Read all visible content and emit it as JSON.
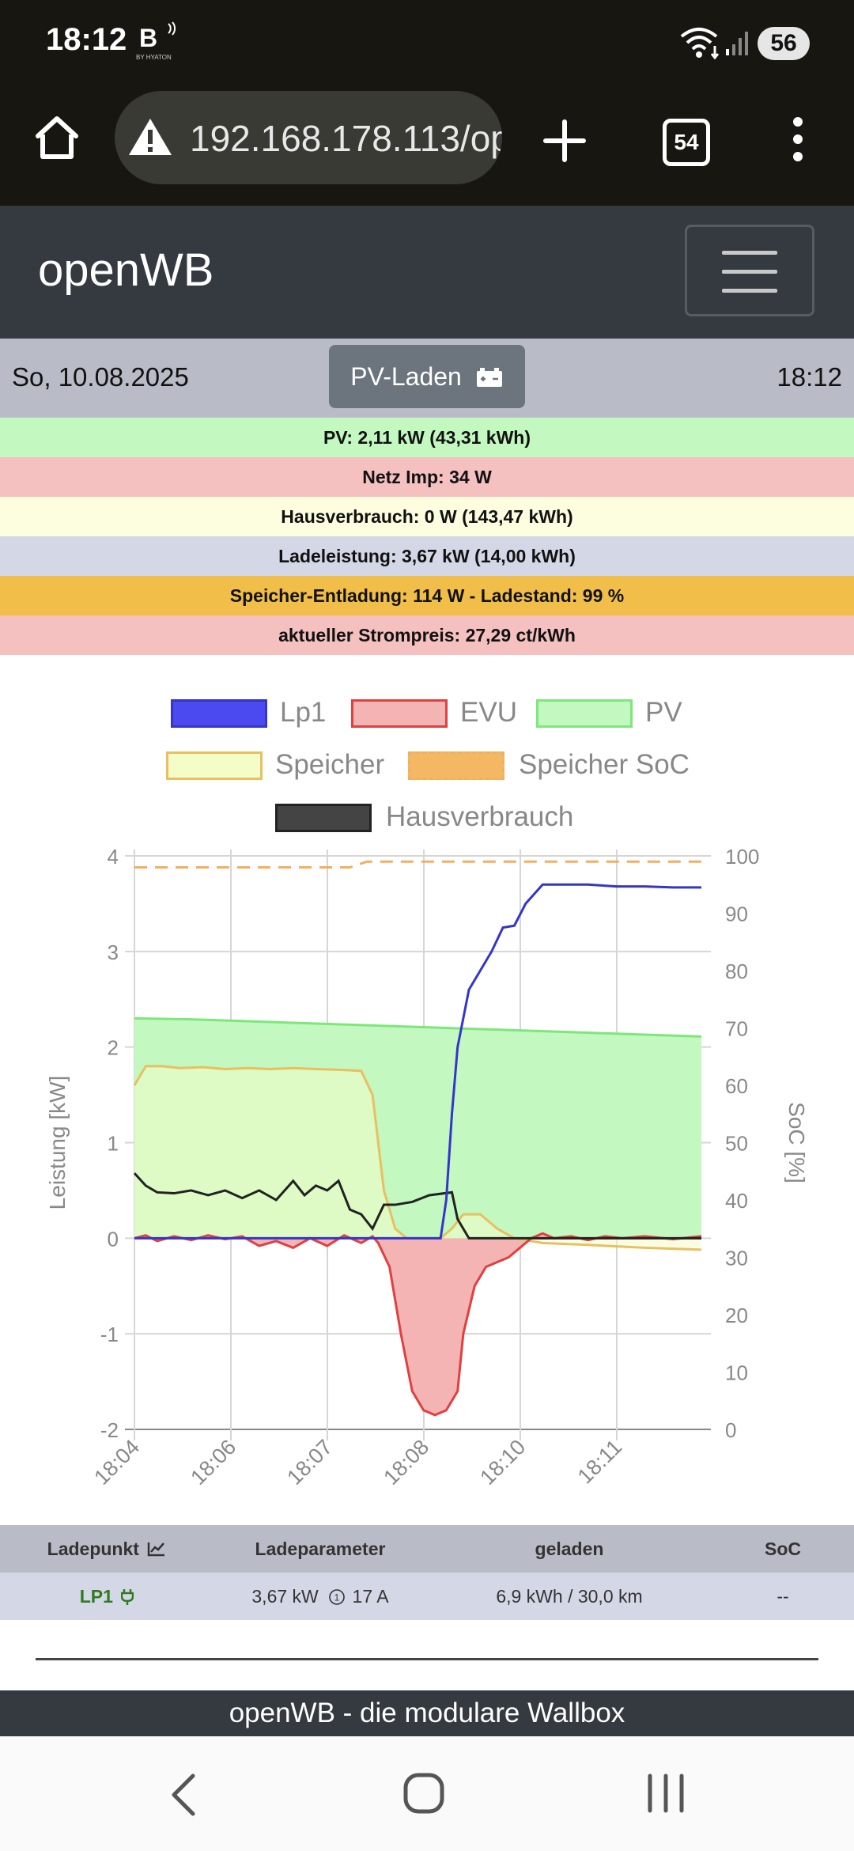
{
  "status": {
    "time": "18:12",
    "carrier": "B",
    "carrier_sub": "BY HYATON",
    "battery": "56"
  },
  "browser": {
    "url": "192.168.178.113/op",
    "tab_count": "54"
  },
  "navbar": {
    "brand": "openWB"
  },
  "daterow": {
    "date": "So, 10.08.2025",
    "mode": "PV-Laden",
    "time": "18:12"
  },
  "info": [
    {
      "text": "PV: 2,11 kW (43,31 kWh)",
      "color": "#c3f8c0"
    },
    {
      "text": "Netz Imp: 34 W",
      "color": "#f4c0c0"
    },
    {
      "text": "Hausverbrauch: 0 W (143,47 kWh)",
      "color": "#fdfde0"
    },
    {
      "text": "Ladeleistung: 3,67 kW (14,00 kWh)",
      "color": "#d4d8e6"
    },
    {
      "text": "Speicher-Entladung: 114 W  - Ladestand: 99 %",
      "color": "#f2be4a"
    },
    {
      "text": "aktueller Strompreis: 27,29 ct/kWh",
      "color": "#f4c0c0"
    }
  ],
  "chart_data": {
    "type": "line",
    "legend": [
      {
        "name": "Lp1",
        "fill": "#4a4af0",
        "stroke": "#3535c8"
      },
      {
        "name": "EVU",
        "fill": "#f4b4b4",
        "stroke": "#e04040"
      },
      {
        "name": "PV",
        "fill": "#c3f8c0",
        "stroke": "#7ce87a"
      },
      {
        "name": "Speicher",
        "fill": "#f4fcc8",
        "stroke": "#e8c060"
      },
      {
        "name": "Speicher SoC",
        "fill": "#f4b864",
        "stroke": "#f0b060"
      },
      {
        "name": "Hausverbrauch",
        "fill": "#444444",
        "stroke": "#222222"
      }
    ],
    "xlabels": [
      "18:04",
      "18:06",
      "18:07",
      "18:08",
      "18:10",
      "18:11"
    ],
    "ylabel_left": "Leistung [kW]",
    "ylabel_right": "SoC [%]",
    "ylim_left": [
      -2,
      4
    ],
    "yticks_left": [
      "4",
      "3",
      "2",
      "1",
      "0",
      "-1",
      "-2"
    ],
    "ylim_right": [
      0,
      100
    ],
    "yticks_right": [
      "100",
      "90",
      "80",
      "70",
      "60",
      "50",
      "40",
      "30",
      "20",
      "10",
      "0"
    ],
    "x_range": [
      0,
      100
    ],
    "series": {
      "PV": [
        [
          0,
          2.3
        ],
        [
          10,
          2.29
        ],
        [
          20,
          2.27
        ],
        [
          30,
          2.25
        ],
        [
          40,
          2.23
        ],
        [
          50,
          2.21
        ],
        [
          60,
          2.19
        ],
        [
          70,
          2.17
        ],
        [
          80,
          2.15
        ],
        [
          90,
          2.13
        ],
        [
          100,
          2.11
        ]
      ],
      "Speicher": [
        [
          0,
          1.6
        ],
        [
          2,
          1.8
        ],
        [
          5,
          1.8
        ],
        [
          8,
          1.78
        ],
        [
          12,
          1.79
        ],
        [
          16,
          1.77
        ],
        [
          20,
          1.78
        ],
        [
          24,
          1.77
        ],
        [
          28,
          1.78
        ],
        [
          32,
          1.77
        ],
        [
          37,
          1.76
        ],
        [
          40,
          1.75
        ],
        [
          42,
          1.5
        ],
        [
          44,
          0.5
        ],
        [
          46,
          0.1
        ],
        [
          48,
          0
        ],
        [
          54,
          0
        ],
        [
          56,
          0.1
        ],
        [
          58,
          0.25
        ],
        [
          61,
          0.25
        ],
        [
          64,
          0.1
        ],
        [
          67,
          0
        ],
        [
          72,
          -0.05
        ],
        [
          80,
          -0.07
        ],
        [
          90,
          -0.1
        ],
        [
          100,
          -0.12
        ]
      ],
      "EVU": [
        [
          0,
          0
        ],
        [
          2,
          0.03
        ],
        [
          4,
          -0.03
        ],
        [
          7,
          0.02
        ],
        [
          10,
          -0.02
        ],
        [
          13,
          0.03
        ],
        [
          16,
          -0.01
        ],
        [
          19,
          0.02
        ],
        [
          22,
          -0.08
        ],
        [
          25,
          -0.03
        ],
        [
          28,
          -0.1
        ],
        [
          31,
          0
        ],
        [
          34,
          -0.08
        ],
        [
          37,
          0.03
        ],
        [
          40,
          -0.05
        ],
        [
          42,
          0.02
        ],
        [
          43,
          -0.05
        ],
        [
          45,
          -0.3
        ],
        [
          47,
          -1.0
        ],
        [
          49,
          -1.6
        ],
        [
          51,
          -1.8
        ],
        [
          53,
          -1.85
        ],
        [
          55,
          -1.8
        ],
        [
          57,
          -1.6
        ],
        [
          58,
          -1.0
        ],
        [
          60,
          -0.5
        ],
        [
          62,
          -0.3
        ],
        [
          64,
          -0.25
        ],
        [
          66,
          -0.2
        ],
        [
          67,
          -0.15
        ],
        [
          70,
          0
        ],
        [
          72,
          0.05
        ],
        [
          74,
          0
        ],
        [
          77,
          0.02
        ],
        [
          80,
          -0.02
        ],
        [
          83,
          0.02
        ],
        [
          86,
          0
        ],
        [
          90,
          0.02
        ],
        [
          95,
          -0.01
        ],
        [
          100,
          0.02
        ]
      ],
      "Lp1": [
        [
          0,
          0
        ],
        [
          53,
          0
        ],
        [
          54,
          0
        ],
        [
          55,
          0.4
        ],
        [
          56,
          1.3
        ],
        [
          57,
          2.0
        ],
        [
          59,
          2.6
        ],
        [
          61,
          2.8
        ],
        [
          63,
          3.0
        ],
        [
          65,
          3.25
        ],
        [
          67,
          3.27
        ],
        [
          69,
          3.5
        ],
        [
          72,
          3.7
        ],
        [
          80,
          3.7
        ],
        [
          85,
          3.68
        ],
        [
          90,
          3.68
        ],
        [
          95,
          3.67
        ],
        [
          100,
          3.67
        ]
      ],
      "Hausverbrauch": [
        [
          0,
          0.68
        ],
        [
          2,
          0.55
        ],
        [
          4,
          0.48
        ],
        [
          7,
          0.47
        ],
        [
          10,
          0.5
        ],
        [
          13,
          0.45
        ],
        [
          16,
          0.5
        ],
        [
          19,
          0.42
        ],
        [
          22,
          0.5
        ],
        [
          25,
          0.4
        ],
        [
          28,
          0.6
        ],
        [
          30,
          0.45
        ],
        [
          32,
          0.55
        ],
        [
          34,
          0.5
        ],
        [
          36,
          0.6
        ],
        [
          38,
          0.3
        ],
        [
          40,
          0.25
        ],
        [
          42,
          0.1
        ],
        [
          44,
          0.35
        ],
        [
          46,
          0.35
        ],
        [
          49,
          0.38
        ],
        [
          52,
          0.45
        ],
        [
          56,
          0.48
        ],
        [
          57,
          0.2
        ],
        [
          59,
          0
        ],
        [
          65,
          0
        ],
        [
          75,
          0
        ],
        [
          85,
          0
        ],
        [
          100,
          0
        ]
      ],
      "Speicher SoC": [
        [
          0,
          98
        ],
        [
          38,
          98
        ],
        [
          41,
          99
        ],
        [
          100,
          99
        ]
      ]
    }
  },
  "table": {
    "headers": [
      "Ladepunkt",
      "Ladeparameter",
      "geladen",
      "SoC"
    ],
    "row": {
      "ladepunkt": "LP1",
      "param": "3,67 kW",
      "phase": "1",
      "ampere": "17 A",
      "geladen": "6,9 kWh / 30,0 km",
      "soc": "--"
    }
  },
  "footer": {
    "text": "openWB - die modulare Wallbox"
  }
}
